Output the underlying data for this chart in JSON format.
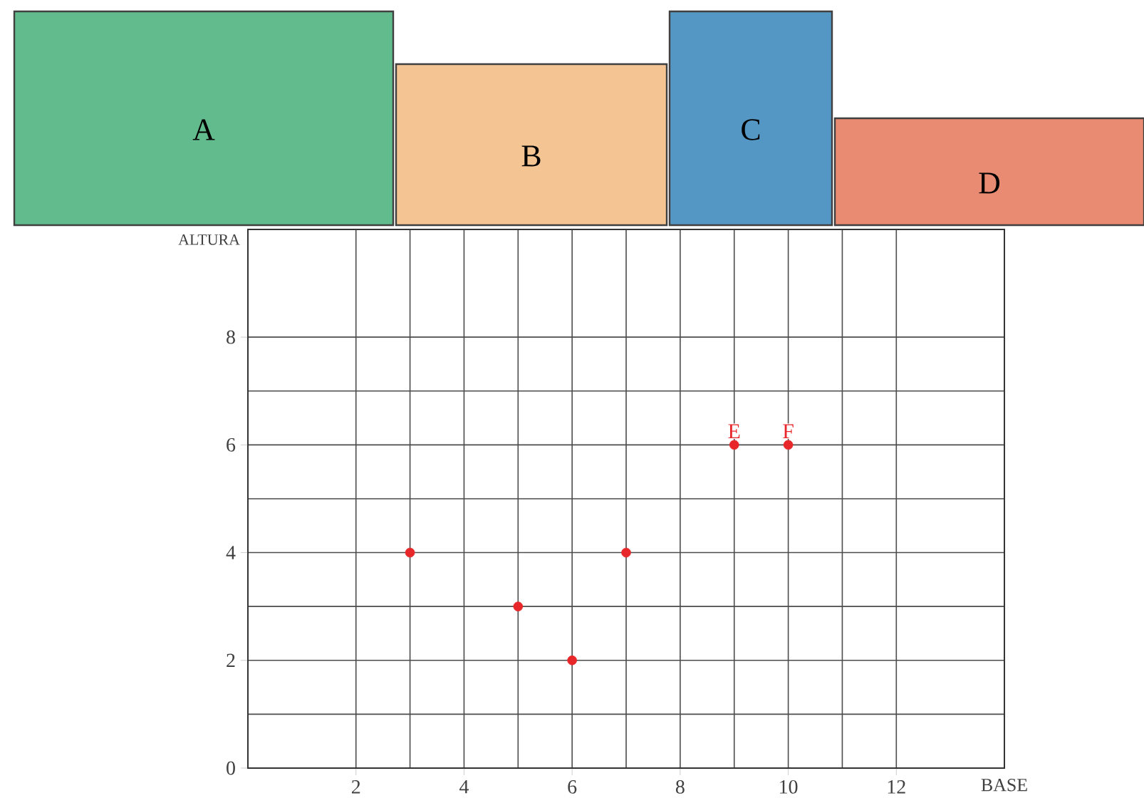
{
  "chart_data": {
    "type": "scatter",
    "xlabel": "BASE",
    "ylabel": "ALTURA",
    "x": [
      3,
      5,
      6,
      7,
      9,
      10
    ],
    "series": [
      {
        "color": "#e8272a",
        "values": [
          4,
          3,
          2,
          4,
          6,
          6
        ]
      }
    ],
    "xlim": [
      0,
      14
    ],
    "ylim": [
      0,
      10
    ],
    "xticks": [
      2,
      4,
      6,
      8,
      10,
      12
    ],
    "yticks": [
      0,
      2,
      4,
      6,
      8
    ],
    "grid": true,
    "annotations": [
      "A",
      "B",
      "C",
      "D",
      {
        "text": "E",
        "x": 9,
        "y": 6
      },
      {
        "text": "F",
        "x": 10,
        "y": 6
      }
    ]
  }
}
